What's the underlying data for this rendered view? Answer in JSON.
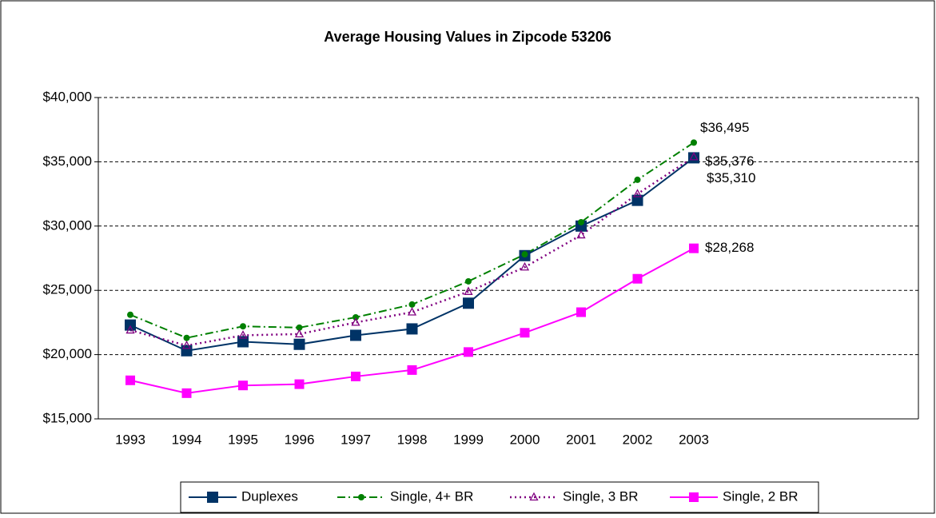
{
  "chart_data": {
    "type": "line",
    "title": "Average Housing Values in Zipcode 53206",
    "categories": [
      "1993",
      "1994",
      "1995",
      "1996",
      "1997",
      "1998",
      "1999",
      "2000",
      "2001",
      "2002",
      "2003"
    ],
    "series": [
      {
        "name": "Duplexes",
        "color": "#003366",
        "values": [
          22300,
          20300,
          21000,
          20800,
          21500,
          22000,
          24000,
          27700,
          30000,
          32000,
          35310
        ],
        "value_labels": [
          null,
          null,
          null,
          null,
          null,
          null,
          null,
          null,
          null,
          null,
          "$35,310"
        ]
      },
      {
        "name": "Single, 4+ BR",
        "color": "#008000",
        "values": [
          23100,
          21300,
          22200,
          22100,
          22900,
          23900,
          25700,
          27800,
          30300,
          33600,
          36495
        ],
        "value_labels": [
          null,
          null,
          null,
          null,
          null,
          null,
          null,
          null,
          null,
          null,
          "$36,495"
        ]
      },
      {
        "name": "Single, 3 BR",
        "color": "#800080",
        "values": [
          21900,
          20700,
          21500,
          21600,
          22500,
          23300,
          24900,
          26800,
          29300,
          32500,
          35376
        ],
        "value_labels": [
          null,
          null,
          null,
          null,
          null,
          null,
          null,
          null,
          null,
          null,
          "$35,376"
        ]
      },
      {
        "name": "Single, 2 BR",
        "color": "#ff00ff",
        "values": [
          18000,
          17000,
          17600,
          17700,
          18300,
          18800,
          20200,
          21700,
          23300,
          25900,
          28268
        ],
        "value_labels": [
          null,
          null,
          null,
          null,
          null,
          null,
          null,
          null,
          null,
          null,
          "$28,268"
        ]
      }
    ],
    "ylim": [
      15000,
      40000
    ],
    "yticks": [
      {
        "value": 15000,
        "label": "$15,000"
      },
      {
        "value": 20000,
        "label": "$20,000"
      },
      {
        "value": 25000,
        "label": "$25,000"
      },
      {
        "value": 30000,
        "label": "$30,000"
      },
      {
        "value": 35000,
        "label": "$35,000"
      },
      {
        "value": 40000,
        "label": "$40,000"
      }
    ],
    "grid": true,
    "legend": "bottom"
  }
}
